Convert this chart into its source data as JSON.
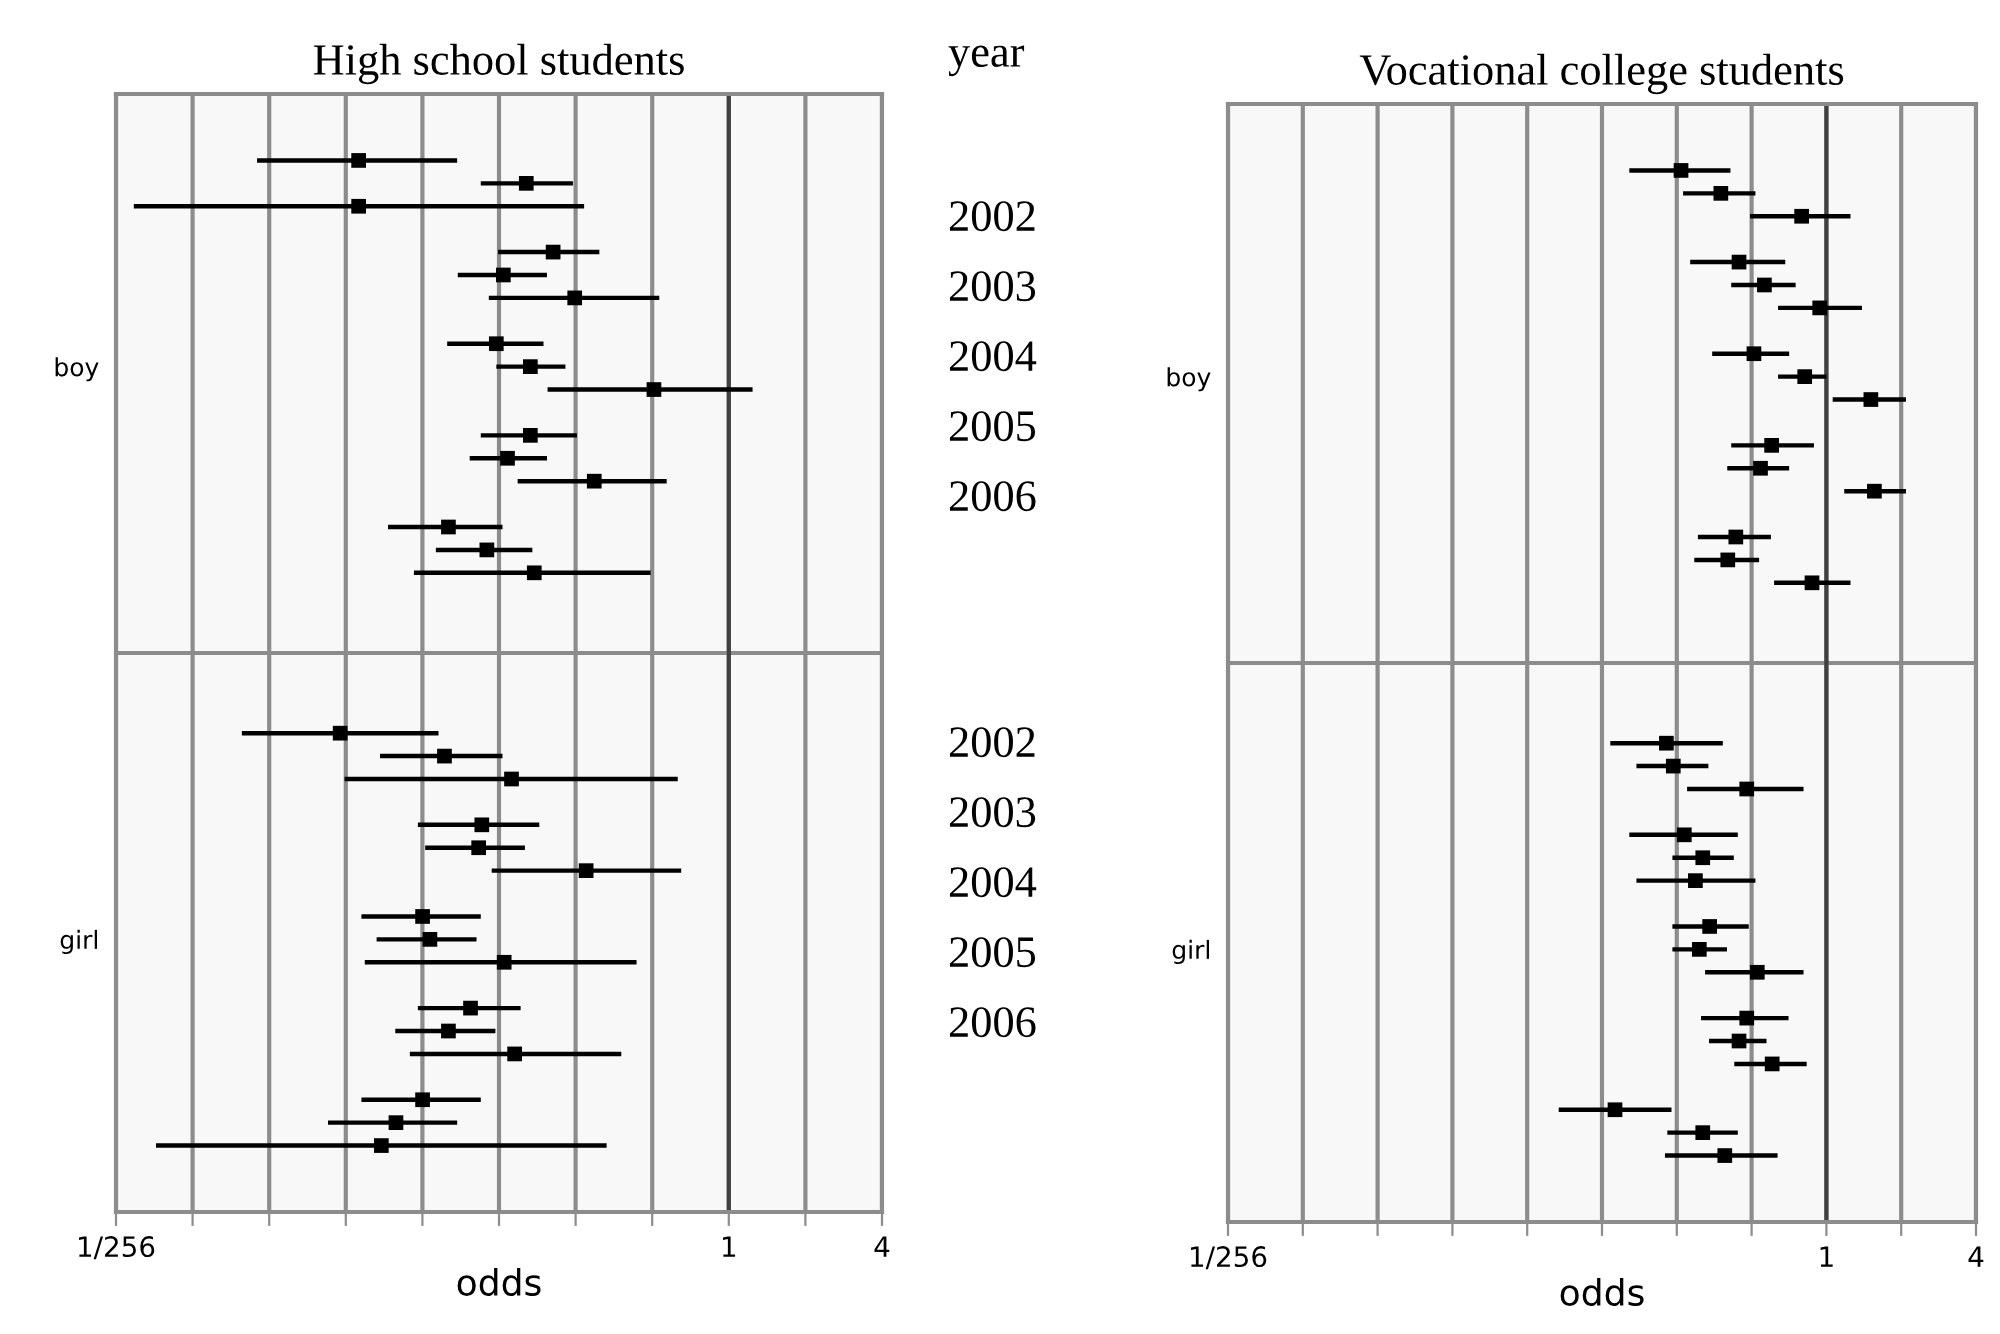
{
  "chart_data": [
    {
      "type": "scatter",
      "orientation": "horizontal",
      "title": "High school students",
      "xlabel": "odds",
      "annotations": [
        "year",
        "2002",
        "2003",
        "2004",
        "2005",
        "2006",
        "2002",
        "2003",
        "2004",
        "2005",
        "2006"
      ],
      "categories": [
        null,
        null,
        null,
        null,
        null,
        null,
        null,
        null,
        null,
        "boy",
        null,
        null,
        null,
        null,
        null,
        null,
        null,
        null,
        null,
        null,
        null,
        null,
        null,
        null,
        null,
        null,
        null,
        null,
        null,
        null,
        null,
        null,
        null,
        null,
        "girl",
        null,
        null,
        null,
        null,
        null,
        null,
        null,
        null,
        null
      ],
      "series": [
        {
          "color": "#000000",
          "values": [
            0.0351,
            0.16,
            0.0351,
            null,
            0.204,
            0.13,
            0.248,
            null,
            0.122,
            0.166,
            0.508,
            null,
            0.166,
            0.135,
            0.296,
            null,
            0.0791,
            0.112,
            0.172,
            null,
            null,
            null,
            null,
            null,
            null,
            0.0297,
            0.0763,
            0.14,
            null,
            0.107,
            0.104,
            0.275,
            null,
            0.0626,
            0.0669,
            0.131,
            null,
            0.0966,
            0.0791,
            0.144,
            null,
            0.0626,
            0.0492,
            0.0431
          ],
          "errors": [
            [
              0.014,
              0.0856
            ],
            [
              0.106,
              0.244
            ],
            [
              0.00459,
              0.27
            ],
            null,
            [
              0.124,
              0.31
            ],
            [
              0.0861,
              0.193
            ],
            [
              0.114,
              0.533
            ],
            null,
            [
              0.0782,
              0.187
            ],
            [
              0.122,
              0.228
            ],
            [
              0.194,
              1.24
            ],
            null,
            [
              0.106,
              0.253
            ],
            [
              0.0959,
              0.193
            ],
            [
              0.148,
              0.57
            ],
            null,
            [
              0.0458,
              0.129
            ],
            [
              0.0706,
              0.169
            ],
            [
              0.0579,
              0.493
            ],
            null,
            null,
            null,
            null,
            null,
            null,
            [
              0.0122,
              0.0723
            ],
            [
              0.0426,
              0.129
            ],
            [
              0.0309,
              0.63
            ],
            null,
            [
              0.06,
              0.18
            ],
            [
              0.0641,
              0.158
            ],
            [
              0.117,
              0.65
            ],
            null,
            [
              0.036,
              0.106
            ],
            [
              0.0413,
              0.102
            ],
            [
              0.0371,
              0.434
            ],
            null,
            [
              0.06,
              0.152
            ],
            [
              0.0489,
              0.121
            ],
            [
              0.0558,
              0.378
            ],
            null,
            [
              0.036,
              0.106
            ],
            [
              0.0266,
              0.0856
            ],
            [
              0.00561,
              0.331
            ]
          ]
        }
      ],
      "xlim": [
        0.00390625,
        4
      ],
      "xticks": [
        {
          "value": 0.00390625,
          "label": "1/256"
        },
        {
          "value": 0.0078125,
          "label": null
        },
        {
          "value": 0.015625,
          "label": null
        },
        {
          "value": 0.03125,
          "label": null
        },
        {
          "value": 0.0625,
          "label": null
        },
        {
          "value": 0.125,
          "label": null
        },
        {
          "value": 0.25,
          "label": null
        },
        {
          "value": 0.5,
          "label": null
        },
        1,
        {
          "value": 2,
          "label": null
        },
        4
      ],
      "log": "x",
      "grid": "x",
      "marker": "square",
      "ref_lines": [
        {
          "axis": "x",
          "value": 1,
          "color": "#404040"
        }
      ]
    },
    {
      "type": "scatter",
      "orientation": "horizontal",
      "title": "Vocational college students",
      "xlabel": "odds",
      "categories": [
        null,
        null,
        null,
        null,
        null,
        null,
        null,
        null,
        null,
        "boy",
        null,
        null,
        null,
        null,
        null,
        null,
        null,
        null,
        null,
        null,
        null,
        null,
        null,
        null,
        null,
        null,
        null,
        null,
        null,
        null,
        null,
        null,
        null,
        null,
        "girl",
        null,
        null,
        null,
        null,
        null,
        null,
        null,
        null,
        null
      ],
      "series": [
        {
          "color": "#000000",
          "values": [
            0.26,
            0.376,
            0.795,
            null,
            0.445,
            0.563,
            0.94,
            null,
            0.511,
            0.818,
            1.51,
            null,
            0.602,
            0.543,
            1.56,
            null,
            0.432,
            0.401,
            0.875,
            null,
            null,
            null,
            null,
            null,
            null,
            0.227,
            0.242,
            0.478,
            null,
            0.268,
            0.318,
            0.297,
            null,
            0.339,
            0.308,
            0.527,
            null,
            0.478,
            0.445,
            0.605,
            null,
            0.141,
            0.318,
            0.39
          ],
          "errors": [
            [
              0.161,
              0.411
            ],
            [
              0.265,
              0.518
            ],
            [
              0.493,
              1.25
            ],
            null,
            [
              0.283,
              0.683
            ],
            [
              0.414,
              0.752
            ],
            [
              0.639,
              1.39
            ],
            null,
            [
              0.347,
              0.708
            ],
            [
              0.639,
              1.0
            ],
            [
              1.06,
              2.09
            ],
            null,
            [
              0.414,
              0.891
            ],
            [
              0.399,
              0.708
            ],
            [
              1.18,
              2.09
            ],
            null,
            [
              0.304,
              0.598
            ],
            [
              0.294,
              0.536
            ],
            [
              0.616,
              1.25
            ],
            null,
            null,
            null,
            null,
            null,
            null,
            [
              0.135,
              0.383
            ],
            [
              0.172,
              0.335
            ],
            [
              0.275,
              0.809
            ],
            null,
            [
              0.161,
              0.44
            ],
            [
              0.24,
              0.424
            ],
            [
              0.172,
              0.518
            ],
            null,
            [
              0.24,
              0.487
            ],
            [
              0.24,
              0.398
            ],
            [
              0.325,
              0.809
            ],
            null,
            [
              0.313,
              0.704
            ],
            [
              0.337,
              0.574
            ],
            [
              0.426,
              0.833
            ],
            null,
            [
              0.0837,
              0.238
            ],
            [
              0.229,
              0.44
            ],
            [
              0.224,
              0.636
            ]
          ]
        }
      ],
      "xlim": [
        0.00390625,
        4
      ],
      "xticks": [
        {
          "value": 0.00390625,
          "label": "1/256"
        },
        {
          "value": 0.0078125,
          "label": null
        },
        {
          "value": 0.015625,
          "label": null
        },
        {
          "value": 0.03125,
          "label": null
        },
        {
          "value": 0.0625,
          "label": null
        },
        {
          "value": 0.125,
          "label": null
        },
        {
          "value": 0.25,
          "label": null
        },
        {
          "value": 0.5,
          "label": null
        },
        1,
        {
          "value": 2,
          "label": null
        },
        4
      ],
      "log": "x",
      "grid": "x",
      "marker": "square",
      "ref_lines": [
        {
          "axis": "x",
          "value": 1,
          "color": "#404040"
        }
      ]
    }
  ]
}
